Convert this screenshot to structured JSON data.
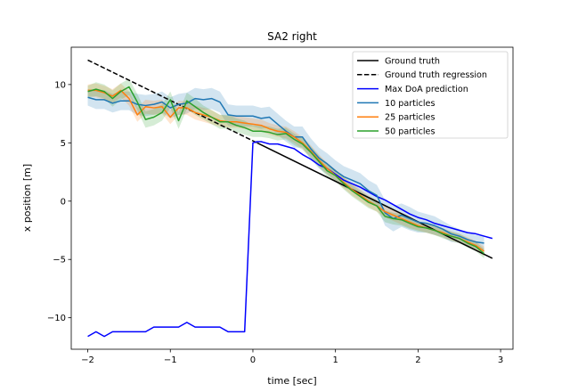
{
  "chart_data": {
    "type": "line",
    "title": "SA2 right",
    "xlabel": "time [sec]",
    "ylabel": "x position [m]",
    "xlim": [
      -2.2,
      3.15
    ],
    "ylim": [
      -12.7,
      13.2
    ],
    "xticks": [
      -2,
      -1,
      0,
      1,
      2,
      3
    ],
    "xtick_labels": [
      "−2",
      "−1",
      "0",
      "1",
      "2",
      "3"
    ],
    "yticks": [
      -10,
      -5,
      0,
      5,
      10
    ],
    "ytick_labels": [
      "−10",
      "−5",
      "0",
      "5",
      "10"
    ],
    "grid": false,
    "legend_position": "top-right",
    "series": [
      {
        "name": "Ground truth",
        "color": "#000000",
        "style": "solid",
        "x": [
          0.05,
          2.9
        ],
        "y": [
          5.0,
          -4.9
        ]
      },
      {
        "name": "Ground truth regression",
        "color": "#000000",
        "style": "dashed",
        "x": [
          -2.0,
          0.05
        ],
        "y": [
          12.1,
          5.0
        ]
      },
      {
        "name": "Max DoA prediction",
        "color": "#0000ff",
        "style": "solid",
        "x": [
          -2.0,
          -1.9,
          -1.8,
          -1.7,
          -1.6,
          -1.5,
          -1.4,
          -1.3,
          -1.2,
          -1.1,
          -1.0,
          -0.9,
          -0.8,
          -0.7,
          -0.6,
          -0.5,
          -0.4,
          -0.3,
          -0.2,
          -0.1,
          0.0,
          0.05,
          0.1,
          0.15,
          0.2,
          0.3,
          0.4,
          0.5,
          0.6,
          0.7,
          0.8,
          0.9,
          1.0,
          1.1,
          1.2,
          1.3,
          1.4,
          1.5,
          1.6,
          1.7,
          1.8,
          1.9,
          2.0,
          2.1,
          2.2,
          2.3,
          2.4,
          2.5,
          2.6,
          2.7,
          2.8,
          2.9
        ],
        "y": [
          -11.6,
          -11.2,
          -11.6,
          -11.2,
          -11.2,
          -11.2,
          -11.2,
          -11.2,
          -10.8,
          -10.8,
          -10.8,
          -10.8,
          -10.4,
          -10.8,
          -10.8,
          -10.8,
          -10.8,
          -11.2,
          -11.2,
          -11.2,
          5.0,
          5.1,
          5.1,
          5.0,
          4.9,
          4.9,
          4.7,
          4.5,
          4.0,
          3.6,
          3.1,
          2.8,
          2.3,
          1.8,
          1.5,
          1.2,
          0.8,
          0.4,
          0.1,
          -0.3,
          -0.7,
          -1.1,
          -1.4,
          -1.6,
          -1.9,
          -2.1,
          -2.3,
          -2.5,
          -2.7,
          -2.8,
          -3.0,
          -3.2
        ]
      },
      {
        "name": "10 particles",
        "color": "#1f77b4",
        "style": "solid",
        "band": true,
        "x": [
          -2.0,
          -1.9,
          -1.8,
          -1.7,
          -1.6,
          -1.5,
          -1.4,
          -1.3,
          -1.2,
          -1.1,
          -1.0,
          -0.9,
          -0.8,
          -0.7,
          -0.6,
          -0.5,
          -0.4,
          -0.3,
          -0.2,
          -0.1,
          0.0,
          0.1,
          0.2,
          0.3,
          0.4,
          0.5,
          0.6,
          0.7,
          0.8,
          0.9,
          1.0,
          1.1,
          1.2,
          1.3,
          1.4,
          1.5,
          1.6,
          1.7,
          1.8,
          1.9,
          2.0,
          2.1,
          2.2,
          2.3,
          2.4,
          2.5,
          2.6,
          2.7,
          2.8
        ],
        "y": [
          8.9,
          8.7,
          8.7,
          8.4,
          8.6,
          8.6,
          8.3,
          8.2,
          8.3,
          8.5,
          8.0,
          8.3,
          8.4,
          8.8,
          8.7,
          8.8,
          8.5,
          7.4,
          7.3,
          7.3,
          7.3,
          7.1,
          7.2,
          6.6,
          6.0,
          5.5,
          5.5,
          4.5,
          3.7,
          3.2,
          2.6,
          2.1,
          1.8,
          1.5,
          0.9,
          0.5,
          -1.0,
          -1.5,
          -1.2,
          -1.5,
          -1.8,
          -1.9,
          -2.1,
          -2.4,
          -2.8,
          -3.0,
          -3.3,
          -3.5,
          -3.6
        ],
        "band_width": [
          0.7,
          0.8,
          0.8,
          0.8,
          0.8,
          0.8,
          0.9,
          0.9,
          0.9,
          0.9,
          0.9,
          0.9,
          0.9,
          0.9,
          0.9,
          0.9,
          0.9,
          0.9,
          0.9,
          0.9,
          0.9,
          0.9,
          0.9,
          0.9,
          0.9,
          0.9,
          0.9,
          0.9,
          0.9,
          0.9,
          0.9,
          0.9,
          0.9,
          0.9,
          0.9,
          0.9,
          1.1,
          1.1,
          1.0,
          1.0,
          0.9,
          0.8,
          0.8,
          0.7,
          0.7,
          0.6,
          0.6,
          0.6,
          0.6
        ]
      },
      {
        "name": "25 particles",
        "color": "#ff7f0e",
        "style": "solid",
        "band": true,
        "x": [
          -2.0,
          -1.9,
          -1.8,
          -1.7,
          -1.6,
          -1.5,
          -1.4,
          -1.3,
          -1.2,
          -1.1,
          -1.0,
          -0.9,
          -0.8,
          -0.7,
          -0.6,
          -0.5,
          -0.4,
          -0.3,
          -0.2,
          -0.1,
          0.0,
          0.1,
          0.2,
          0.3,
          0.4,
          0.5,
          0.6,
          0.7,
          0.8,
          0.9,
          1.0,
          1.1,
          1.2,
          1.3,
          1.4,
          1.5,
          1.6,
          1.7,
          1.8,
          1.9,
          2.0,
          2.1,
          2.2,
          2.3,
          2.4,
          2.5,
          2.6,
          2.7,
          2.8
        ],
        "y": [
          9.5,
          9.5,
          9.3,
          9.0,
          9.5,
          8.8,
          7.4,
          8.1,
          8.0,
          8.1,
          7.2,
          8.0,
          8.0,
          7.6,
          7.4,
          7.2,
          6.9,
          6.8,
          6.8,
          6.7,
          6.6,
          6.5,
          6.2,
          6.0,
          5.9,
          5.5,
          5.0,
          4.3,
          3.5,
          2.8,
          2.2,
          1.6,
          1.0,
          0.5,
          0.0,
          -0.4,
          -0.9,
          -1.2,
          -1.5,
          -1.8,
          -2.1,
          -2.3,
          -2.5,
          -2.7,
          -3.0,
          -3.2,
          -3.5,
          -3.8,
          -4.3
        ],
        "band_width": [
          0.5,
          0.6,
          0.6,
          0.6,
          0.6,
          0.6,
          0.6,
          0.6,
          0.6,
          0.6,
          0.6,
          0.6,
          0.6,
          0.6,
          0.6,
          0.6,
          0.5,
          0.5,
          0.5,
          0.5,
          0.5,
          0.5,
          0.5,
          0.5,
          0.5,
          0.5,
          0.5,
          0.5,
          0.5,
          0.5,
          0.5,
          0.5,
          0.5,
          0.5,
          0.5,
          0.5,
          0.5,
          0.5,
          0.5,
          0.5,
          0.4,
          0.4,
          0.4,
          0.4,
          0.4,
          0.4,
          0.4,
          0.4,
          0.4
        ]
      },
      {
        "name": "50 particles",
        "color": "#2ca02c",
        "style": "solid",
        "band": true,
        "x": [
          -2.0,
          -1.9,
          -1.8,
          -1.7,
          -1.6,
          -1.5,
          -1.4,
          -1.3,
          -1.2,
          -1.1,
          -1.0,
          -0.9,
          -0.8,
          -0.7,
          -0.6,
          -0.5,
          -0.4,
          -0.3,
          -0.2,
          -0.1,
          0.0,
          0.1,
          0.2,
          0.3,
          0.4,
          0.5,
          0.6,
          0.7,
          0.8,
          0.9,
          1.0,
          1.1,
          1.2,
          1.3,
          1.4,
          1.5,
          1.6,
          1.7,
          1.8,
          1.9,
          2.0,
          2.1,
          2.2,
          2.3,
          2.4,
          2.5,
          2.6,
          2.7,
          2.8
        ],
        "y": [
          9.4,
          9.6,
          9.4,
          8.8,
          9.4,
          9.8,
          8.5,
          7.0,
          7.2,
          7.6,
          8.7,
          6.9,
          8.6,
          8.1,
          7.6,
          7.2,
          6.8,
          6.8,
          6.5,
          6.3,
          6.0,
          6.0,
          5.9,
          5.7,
          5.8,
          5.3,
          4.9,
          4.2,
          3.4,
          2.6,
          2.2,
          1.5,
          0.9,
          0.4,
          -0.1,
          -0.4,
          -1.3,
          -1.5,
          -1.6,
          -1.9,
          -2.2,
          -2.3,
          -2.5,
          -2.8,
          -3.0,
          -3.2,
          -3.6,
          -3.9,
          -4.5
        ],
        "band_width": [
          0.5,
          0.6,
          0.6,
          0.7,
          0.7,
          0.7,
          0.7,
          0.7,
          0.7,
          0.7,
          0.7,
          0.7,
          0.7,
          0.7,
          0.6,
          0.6,
          0.6,
          0.6,
          0.6,
          0.6,
          0.5,
          0.5,
          0.5,
          0.5,
          0.5,
          0.5,
          0.5,
          0.5,
          0.5,
          0.5,
          0.5,
          0.5,
          0.5,
          0.5,
          0.5,
          0.5,
          0.5,
          0.5,
          0.5,
          0.5,
          0.4,
          0.4,
          0.4,
          0.4,
          0.4,
          0.4,
          0.4,
          0.4,
          0.4
        ]
      }
    ]
  }
}
